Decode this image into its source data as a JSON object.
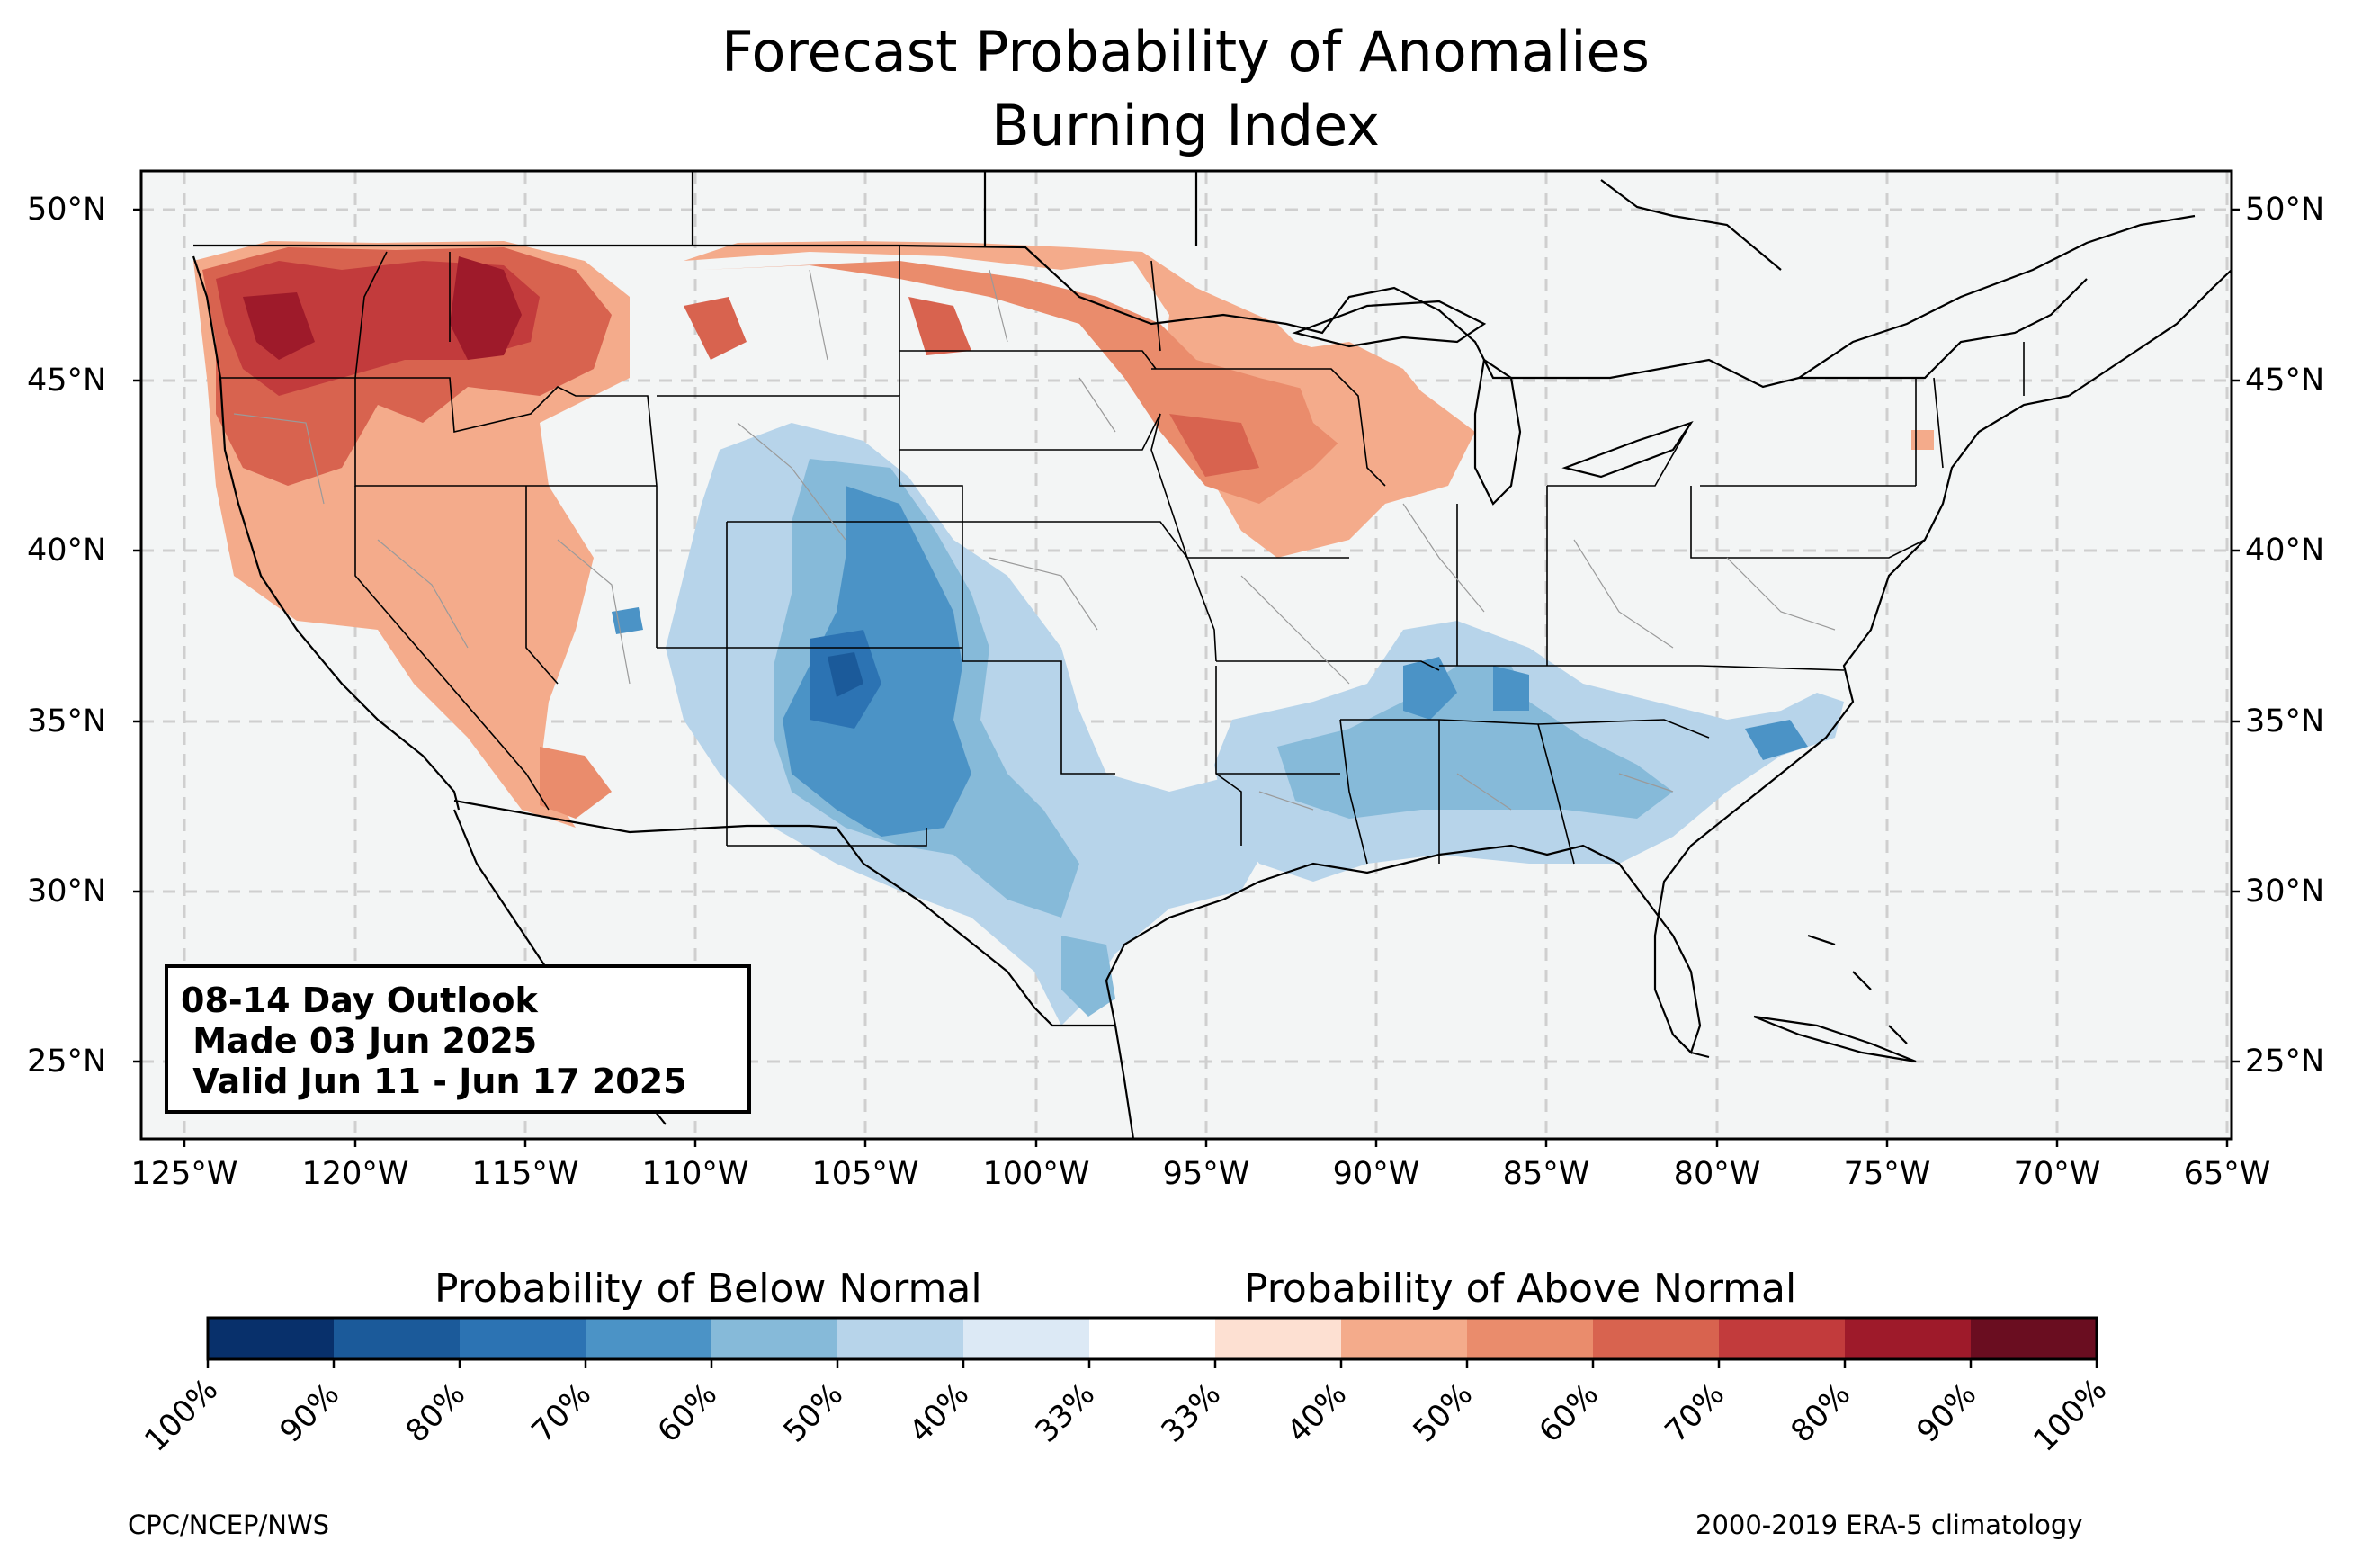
{
  "title": {
    "line1": "Forecast Probability of Anomalies",
    "line2": "Burning Index"
  },
  "outlook": {
    "line1": "08-14 Day Outlook",
    "line2": " Made 03 Jun 2025",
    "line3": " Valid Jun 11 - Jun 17 2025"
  },
  "axes": {
    "lat_labels": [
      "50°N",
      "45°N",
      "40°N",
      "35°N",
      "30°N",
      "25°N"
    ],
    "lon_labels": [
      "125°W",
      "120°W",
      "115°W",
      "110°W",
      "105°W",
      "100°W",
      "95°W",
      "90°W",
      "85°W",
      "80°W",
      "75°W",
      "70°W",
      "65°W"
    ]
  },
  "colorbar": {
    "below_title": "Probability of Below Normal",
    "above_title": "Probability of Above Normal",
    "ticks": [
      "100%",
      "90%",
      "80%",
      "70%",
      "60%",
      "50%",
      "40%",
      "33%",
      "33%",
      "40%",
      "50%",
      "60%",
      "70%",
      "80%",
      "90%",
      "100%"
    ],
    "colors": [
      "#08306b",
      "#1b5a9a",
      "#2c73b3",
      "#4b93c6",
      "#86bad9",
      "#b7d4ea",
      "#dce9f5",
      "#ffffff",
      "#fde0d2",
      "#f4ab8b",
      "#ea8c6c",
      "#d8634f",
      "#c23b3c",
      "#9e1a2a",
      "#6a0d20"
    ]
  },
  "footer": {
    "left": "CPC/NCEP/NWS",
    "right": "2000-2019 ERA-5 climatology"
  }
}
